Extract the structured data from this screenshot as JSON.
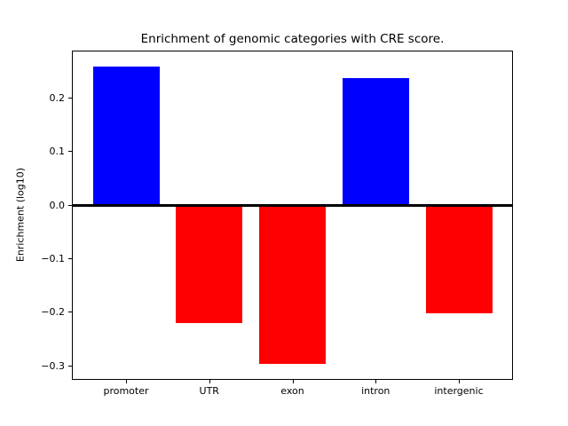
{
  "chart_data": {
    "type": "bar",
    "title": "Enrichment of genomic categories with CRE score.",
    "ylabel": "Enrichment (log10)",
    "xlabel": "",
    "categories": [
      "promoter",
      "UTR",
      "exon",
      "intron",
      "intergenic"
    ],
    "values": [
      0.26,
      -0.22,
      -0.296,
      0.238,
      -0.202
    ],
    "yticks": [
      0.2,
      0.1,
      0.0,
      -0.1,
      -0.2,
      -0.3
    ],
    "ytick_labels": [
      "0.2",
      "0.1",
      "0.0",
      "−0.1",
      "−0.2",
      "−0.3"
    ],
    "ylim": [
      -0.3238,
      0.2878
    ],
    "x_range": [
      -0.64,
      4.64
    ],
    "bar_width_fraction": 0.8,
    "zero_line": true,
    "grid": false,
    "legend": null,
    "colors": {
      "positive": "#0000ff",
      "negative": "#ff0000",
      "zero_line": "#000000",
      "axis": "#000000",
      "background": "#ffffff"
    }
  }
}
